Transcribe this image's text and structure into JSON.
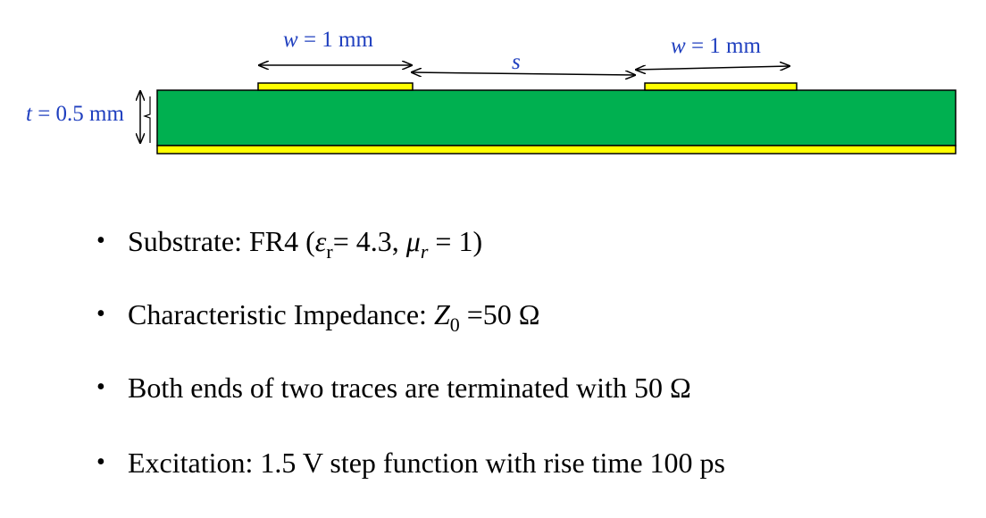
{
  "diagram": {
    "trace_left_label": {
      "var": "w",
      "text": " = 1 mm"
    },
    "trace_right_label": {
      "var": "w",
      "text": " = 1 mm"
    },
    "spacing_label": {
      "var": "s"
    },
    "thickness_label": {
      "var": "t",
      "text": " = 0.5 mm"
    },
    "colors": {
      "substrate": "#00b050",
      "copper": "#ffff00",
      "label": "#1f3fbf",
      "outline": "#000000"
    }
  },
  "bullets": {
    "item1": {
      "prefix": "Substrate: FR4 (",
      "eps_symbol": "ε",
      "eps_sub": "r",
      "eps_value": "= 4.3, ",
      "mu_symbol": "μ",
      "mu_sub": "r",
      "mu_value": " = 1)"
    },
    "item2": {
      "prefix": "Characteristic Impedance: ",
      "z_symbol": "Z",
      "z_sub": "0",
      "z_value": " =50 Ω"
    },
    "item3": {
      "text": "Both ends of two traces are terminated with 50 Ω"
    },
    "item4": {
      "text": "Excitation: 1.5 V step function with rise time 100 ps"
    },
    "marker": "•"
  }
}
